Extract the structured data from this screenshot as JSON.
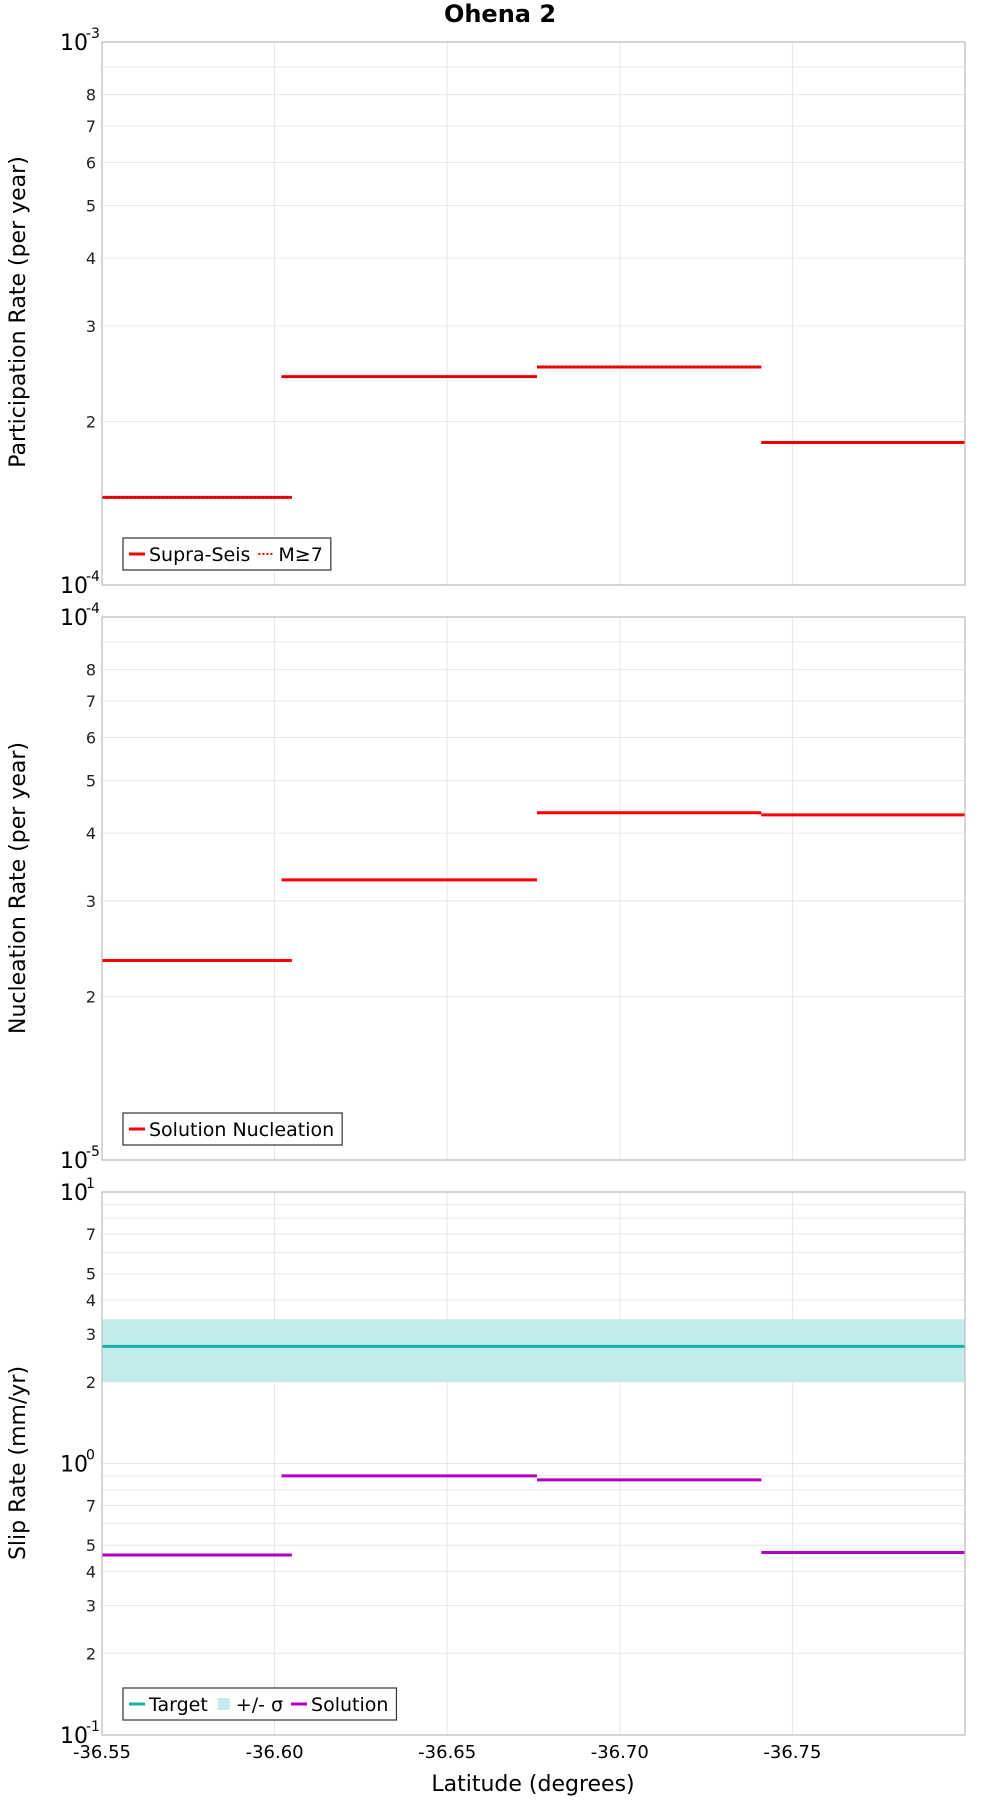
{
  "colors": {
    "red": "#ff0000",
    "teal": "#16b0a8",
    "band": "#c2ecea",
    "magenta": "#b000c0",
    "grid": "#e6e6e6",
    "frame": "#bbbbbb"
  },
  "chart_data": [
    {
      "type": "line",
      "title": "Ohena 2",
      "ylabel": "Participation Rate (per year)",
      "xlabel": "",
      "scale": "log",
      "xlim": [
        -36.55,
        -36.8
      ],
      "ylim": [
        0.0001,
        0.001
      ],
      "decade_labels": [
        {
          "value": 0.0001,
          "base": "10",
          "exp": "-4"
        },
        {
          "value": 0.001,
          "base": "10",
          "exp": "-3"
        }
      ],
      "minor_tick_labels": [
        {
          "value": 0.0002,
          "label": "2"
        },
        {
          "value": 0.0003,
          "label": "3"
        },
        {
          "value": 0.0004,
          "label": "4"
        },
        {
          "value": 0.0005,
          "label": "5"
        },
        {
          "value": 0.0006,
          "label": "6"
        },
        {
          "value": 0.0007,
          "label": "7"
        },
        {
          "value": 0.0008,
          "label": "8"
        }
      ],
      "series": [
        {
          "name": "Supra-Seis",
          "style": "solid",
          "color": "#ff0000",
          "segments": [
            {
              "x0": -36.55,
              "x1": -36.605,
              "y": 0.000145
            },
            {
              "x0": -36.602,
              "x1": -36.676,
              "y": 0.000242
            },
            {
              "x0": -36.676,
              "x1": -36.741,
              "y": 0.000252
            },
            {
              "x0": -36.741,
              "x1": -36.8,
              "y": 0.000183
            }
          ]
        },
        {
          "name": "M≥7",
          "style": "dotted",
          "color": "#ff0000",
          "segments": [
            {
              "x0": -36.55,
              "x1": -36.605,
              "y": 0.000145
            },
            {
              "x0": -36.602,
              "x1": -36.676,
              "y": 0.000242
            },
            {
              "x0": -36.676,
              "x1": -36.741,
              "y": 0.000252
            },
            {
              "x0": -36.741,
              "x1": -36.8,
              "y": 0.000183
            }
          ]
        }
      ],
      "legend": [
        {
          "label": "Supra-Seis",
          "kind": "line-solid",
          "color": "#ff0000"
        },
        {
          "label": "M≥7",
          "kind": "line-dotted",
          "color": "#ff0000"
        }
      ],
      "legend_position": "bottom-left"
    },
    {
      "type": "line",
      "ylabel": "Nucleation Rate (per year)",
      "xlabel": "",
      "scale": "log",
      "xlim": [
        -36.55,
        -36.8
      ],
      "ylim": [
        1e-05,
        0.0001
      ],
      "decade_labels": [
        {
          "value": 1e-05,
          "base": "10",
          "exp": "-5"
        },
        {
          "value": 0.0001,
          "base": "10",
          "exp": "-4"
        }
      ],
      "minor_tick_labels": [
        {
          "value": 2e-05,
          "label": "2"
        },
        {
          "value": 3e-05,
          "label": "3"
        },
        {
          "value": 4e-05,
          "label": "4"
        },
        {
          "value": 5e-05,
          "label": "5"
        },
        {
          "value": 6e-05,
          "label": "6"
        },
        {
          "value": 7e-05,
          "label": "7"
        },
        {
          "value": 8e-05,
          "label": "8"
        }
      ],
      "series": [
        {
          "name": "Solution Nucleation",
          "style": "solid",
          "color": "#ff0000",
          "segments": [
            {
              "x0": -36.55,
              "x1": -36.605,
              "y": 2.33e-05
            },
            {
              "x0": -36.602,
              "x1": -36.676,
              "y": 3.28e-05
            },
            {
              "x0": -36.676,
              "x1": -36.741,
              "y": 4.36e-05
            },
            {
              "x0": -36.741,
              "x1": -36.8,
              "y": 4.32e-05
            }
          ]
        }
      ],
      "legend": [
        {
          "label": "Solution Nucleation",
          "kind": "line-solid",
          "color": "#ff0000"
        }
      ],
      "legend_position": "bottom-left"
    },
    {
      "type": "line",
      "ylabel": "Slip Rate (mm/yr)",
      "xlabel": "Latitude (degrees)",
      "scale": "log",
      "xlim": [
        -36.55,
        -36.8
      ],
      "ylim": [
        0.1,
        10
      ],
      "decade_labels": [
        {
          "value": 0.1,
          "base": "10",
          "exp": "-1"
        },
        {
          "value": 1,
          "base": "10",
          "exp": "0"
        },
        {
          "value": 10,
          "base": "10",
          "exp": "1"
        }
      ],
      "minor_tick_labels": [
        {
          "value": 0.2,
          "label": "2"
        },
        {
          "value": 0.3,
          "label": "3"
        },
        {
          "value": 0.4,
          "label": "4"
        },
        {
          "value": 0.5,
          "label": "5"
        },
        {
          "value": 0.7,
          "label": "7"
        },
        {
          "value": 2,
          "label": "2"
        },
        {
          "value": 3,
          "label": "3"
        },
        {
          "value": 4,
          "label": "4"
        },
        {
          "value": 5,
          "label": "5"
        },
        {
          "value": 7,
          "label": "7"
        }
      ],
      "band": {
        "name": "+/- σ",
        "low": 2.0,
        "high": 3.4,
        "color": "#c2ecea"
      },
      "series": [
        {
          "name": "Target",
          "style": "solid",
          "color": "#16b0a8",
          "segments": [
            {
              "x0": -36.55,
              "x1": -36.8,
              "y": 2.7
            }
          ]
        },
        {
          "name": "Solution",
          "style": "solid",
          "color": "#b000c0",
          "segments": [
            {
              "x0": -36.55,
              "x1": -36.605,
              "y": 0.46
            },
            {
              "x0": -36.602,
              "x1": -36.676,
              "y": 0.9
            },
            {
              "x0": -36.676,
              "x1": -36.741,
              "y": 0.87
            },
            {
              "x0": -36.741,
              "x1": -36.8,
              "y": 0.47
            }
          ]
        }
      ],
      "legend": [
        {
          "label": "Target",
          "kind": "line-solid",
          "color": "#16b0a8"
        },
        {
          "label": "+/- σ",
          "kind": "box",
          "color": "#c2ecea"
        },
        {
          "label": "Solution",
          "kind": "line-solid",
          "color": "#b000c0"
        }
      ],
      "legend_position": "bottom-left",
      "x_ticks": [
        {
          "value": -36.55,
          "label": "-36.55"
        },
        {
          "value": -36.6,
          "label": "-36.60"
        },
        {
          "value": -36.65,
          "label": "-36.65"
        },
        {
          "value": -36.7,
          "label": "-36.70"
        },
        {
          "value": -36.75,
          "label": "-36.75"
        }
      ]
    }
  ]
}
